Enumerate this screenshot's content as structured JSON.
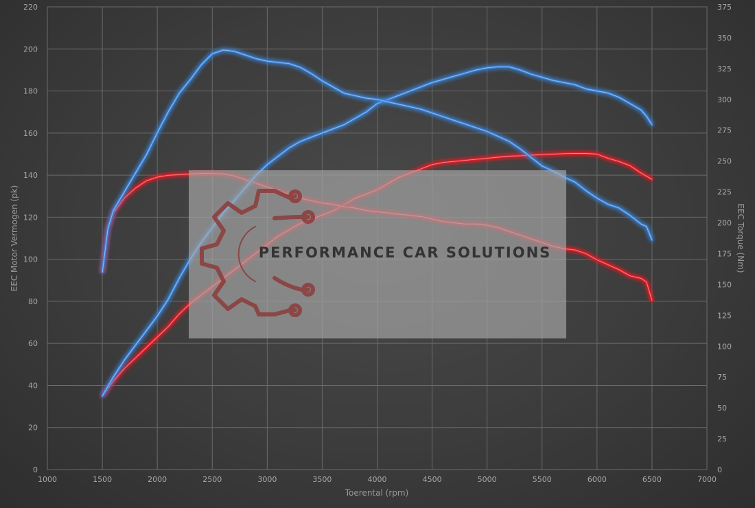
{
  "chart_data": {
    "type": "line",
    "xlabel": "Toerental (rpm)",
    "ylabel_left": "EEC Motor Vermogen (pk)",
    "ylabel_right": "EEC Torque (Nm)",
    "xlim": [
      1000,
      7000
    ],
    "ylim_left": [
      0,
      220
    ],
    "ylim_right": [
      0,
      375
    ],
    "x_ticks": [
      1000,
      1500,
      2000,
      2500,
      3000,
      3500,
      4000,
      4500,
      5000,
      5500,
      6000,
      6500,
      7000
    ],
    "y_left_ticks": [
      0,
      20,
      40,
      60,
      80,
      100,
      120,
      140,
      160,
      180,
      200,
      220
    ],
    "y_right_ticks": [
      0,
      25,
      50,
      75,
      100,
      125,
      150,
      175,
      200,
      225,
      250,
      275,
      300,
      325,
      350,
      375
    ],
    "grid": true,
    "series": [
      {
        "color": "#e8222a",
        "axis": "left",
        "points": [
          [
            1500,
            35
          ],
          [
            1600,
            42
          ],
          [
            1700,
            48
          ],
          [
            1800,
            53
          ],
          [
            1900,
            58
          ],
          [
            2000,
            63
          ],
          [
            2100,
            68
          ],
          [
            2200,
            74
          ],
          [
            2300,
            79
          ],
          [
            2400,
            83
          ],
          [
            2500,
            87
          ],
          [
            2600,
            91
          ],
          [
            2700,
            95
          ],
          [
            2800,
            99
          ],
          [
            2900,
            103
          ],
          [
            3000,
            107
          ],
          [
            3100,
            111
          ],
          [
            3200,
            114
          ],
          [
            3300,
            117
          ],
          [
            3400,
            119
          ],
          [
            3500,
            121
          ],
          [
            3600,
            123
          ],
          [
            3700,
            126
          ],
          [
            3800,
            129
          ],
          [
            3900,
            131
          ],
          [
            4000,
            133
          ],
          [
            4100,
            136
          ],
          [
            4200,
            139
          ],
          [
            4300,
            141
          ],
          [
            4400,
            143
          ],
          [
            4500,
            145
          ],
          [
            4600,
            146
          ],
          [
            4700,
            146.5
          ],
          [
            4800,
            147
          ],
          [
            4900,
            147.5
          ],
          [
            5000,
            148
          ],
          [
            5100,
            148.5
          ],
          [
            5200,
            149
          ],
          [
            5300,
            149.2
          ],
          [
            5400,
            149.5
          ],
          [
            5500,
            149.8
          ],
          [
            5600,
            150
          ],
          [
            5700,
            150.2
          ],
          [
            5800,
            150.3
          ],
          [
            5900,
            150.3
          ],
          [
            6000,
            150
          ],
          [
            6100,
            148
          ],
          [
            6200,
            146.5
          ],
          [
            6300,
            144.5
          ],
          [
            6400,
            141
          ],
          [
            6500,
            138
          ]
        ]
      },
      {
        "color": "#e8222a",
        "axis": "right",
        "points": [
          [
            1500,
            160
          ],
          [
            1550,
            195
          ],
          [
            1600,
            208
          ],
          [
            1700,
            220
          ],
          [
            1800,
            228
          ],
          [
            1900,
            234
          ],
          [
            2000,
            237
          ],
          [
            2100,
            238.5
          ],
          [
            2200,
            239
          ],
          [
            2300,
            239.5
          ],
          [
            2400,
            240
          ],
          [
            2500,
            240
          ],
          [
            2600,
            239.5
          ],
          [
            2700,
            238
          ],
          [
            2800,
            235
          ],
          [
            2900,
            232
          ],
          [
            3000,
            229
          ],
          [
            3100,
            226
          ],
          [
            3200,
            223
          ],
          [
            3300,
            220
          ],
          [
            3400,
            218
          ],
          [
            3500,
            216
          ],
          [
            3600,
            215
          ],
          [
            3700,
            213
          ],
          [
            3800,
            212
          ],
          [
            3900,
            210
          ],
          [
            4000,
            209
          ],
          [
            4100,
            208
          ],
          [
            4200,
            207
          ],
          [
            4300,
            206
          ],
          [
            4400,
            205
          ],
          [
            4500,
            203
          ],
          [
            4600,
            201
          ],
          [
            4700,
            200
          ],
          [
            4800,
            199
          ],
          [
            4900,
            199
          ],
          [
            5000,
            198
          ],
          [
            5100,
            196
          ],
          [
            5200,
            193
          ],
          [
            5300,
            190
          ],
          [
            5400,
            187
          ],
          [
            5500,
            184
          ],
          [
            5600,
            181
          ],
          [
            5700,
            179
          ],
          [
            5800,
            178
          ],
          [
            5900,
            175
          ],
          [
            6000,
            170
          ],
          [
            6100,
            166
          ],
          [
            6200,
            162
          ],
          [
            6300,
            157
          ],
          [
            6400,
            155
          ],
          [
            6450,
            152
          ],
          [
            6500,
            137
          ]
        ]
      },
      {
        "color": "#3c86dc",
        "axis": "left",
        "points": [
          [
            1500,
            35
          ],
          [
            1600,
            44
          ],
          [
            1700,
            52
          ],
          [
            1800,
            59
          ],
          [
            1900,
            66
          ],
          [
            2000,
            73
          ],
          [
            2100,
            81
          ],
          [
            2200,
            91
          ],
          [
            2300,
            100
          ],
          [
            2400,
            108
          ],
          [
            2500,
            115
          ],
          [
            2600,
            122
          ],
          [
            2700,
            128
          ],
          [
            2800,
            134
          ],
          [
            2900,
            140
          ],
          [
            3000,
            145
          ],
          [
            3100,
            149
          ],
          [
            3200,
            153
          ],
          [
            3300,
            156
          ],
          [
            3400,
            158
          ],
          [
            3500,
            160
          ],
          [
            3600,
            162
          ],
          [
            3700,
            164
          ],
          [
            3800,
            167
          ],
          [
            3900,
            170
          ],
          [
            4000,
            174
          ],
          [
            4100,
            176
          ],
          [
            4200,
            178
          ],
          [
            4300,
            180
          ],
          [
            4400,
            182
          ],
          [
            4500,
            184
          ],
          [
            4600,
            185.5
          ],
          [
            4700,
            187
          ],
          [
            4800,
            188.5
          ],
          [
            4900,
            190
          ],
          [
            5000,
            191
          ],
          [
            5100,
            191.5
          ],
          [
            5200,
            191.5
          ],
          [
            5300,
            190
          ],
          [
            5400,
            188
          ],
          [
            5500,
            186.5
          ],
          [
            5600,
            185
          ],
          [
            5700,
            184
          ],
          [
            5800,
            183
          ],
          [
            5900,
            181
          ],
          [
            6000,
            180
          ],
          [
            6100,
            179
          ],
          [
            6200,
            177
          ],
          [
            6300,
            174
          ],
          [
            6400,
            171
          ],
          [
            6450,
            168
          ],
          [
            6500,
            164
          ]
        ]
      },
      {
        "color": "#3c86dc",
        "axis": "right",
        "points": [
          [
            1500,
            160
          ],
          [
            1550,
            195
          ],
          [
            1600,
            210
          ],
          [
            1700,
            225
          ],
          [
            1800,
            240
          ],
          [
            1900,
            255
          ],
          [
            2000,
            273
          ],
          [
            2100,
            290
          ],
          [
            2200,
            305
          ],
          [
            2300,
            316
          ],
          [
            2400,
            328
          ],
          [
            2500,
            337
          ],
          [
            2600,
            340
          ],
          [
            2700,
            339
          ],
          [
            2800,
            336
          ],
          [
            2900,
            333
          ],
          [
            3000,
            331
          ],
          [
            3100,
            330
          ],
          [
            3200,
            329
          ],
          [
            3300,
            326
          ],
          [
            3400,
            321
          ],
          [
            3500,
            315
          ],
          [
            3600,
            310
          ],
          [
            3700,
            305
          ],
          [
            3800,
            303
          ],
          [
            3900,
            301
          ],
          [
            4000,
            300
          ],
          [
            4100,
            298
          ],
          [
            4200,
            296
          ],
          [
            4300,
            294
          ],
          [
            4400,
            292
          ],
          [
            4500,
            289
          ],
          [
            4600,
            286
          ],
          [
            4700,
            283
          ],
          [
            4800,
            280
          ],
          [
            4900,
            277
          ],
          [
            5000,
            274
          ],
          [
            5100,
            270
          ],
          [
            5200,
            266
          ],
          [
            5300,
            260
          ],
          [
            5400,
            253
          ],
          [
            5500,
            246
          ],
          [
            5600,
            242
          ],
          [
            5700,
            237
          ],
          [
            5800,
            233
          ],
          [
            5900,
            226
          ],
          [
            6000,
            220
          ],
          [
            6100,
            215
          ],
          [
            6200,
            212
          ],
          [
            6300,
            206
          ],
          [
            6400,
            199
          ],
          [
            6450,
            197
          ],
          [
            6500,
            186
          ]
        ]
      }
    ]
  },
  "watermark": {
    "text": "PERFORMANCE CAR SOLUTIONS",
    "icon": "gear-circuit-logo-icon"
  }
}
